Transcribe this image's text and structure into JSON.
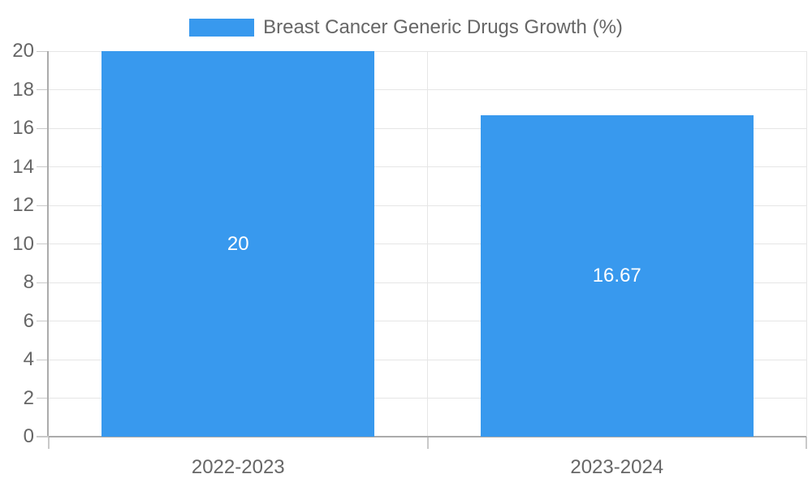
{
  "legend": {
    "entries": [
      "Breast Cancer Generic Drugs Growth (%)"
    ]
  },
  "colors": {
    "bar": "#3899ee",
    "bar_label": "#ffffff",
    "text": "#666666",
    "axis_line": "#ababab",
    "tick_mark": "#c9c9c9",
    "gridline": "#e6e6e6",
    "background": "#ffffff"
  },
  "chart_data": {
    "type": "bar",
    "title": "",
    "legend": [
      "Breast Cancer Generic Drugs Growth (%)"
    ],
    "legend_position": "top",
    "categories": [
      "2022-2023",
      "2023-2024"
    ],
    "series": [
      {
        "name": "Breast Cancer Generic Drugs Growth (%)",
        "values": [
          20,
          16.67
        ]
      }
    ],
    "bar_labels": [
      "20",
      "16.67"
    ],
    "xlabel": "",
    "ylabel": "",
    "ylim": [
      0,
      20
    ],
    "ytick_step": 2,
    "ytick_labels": [
      "0",
      "2",
      "4",
      "6",
      "8",
      "10",
      "12",
      "14",
      "16",
      "18",
      "20"
    ],
    "grid": true
  }
}
